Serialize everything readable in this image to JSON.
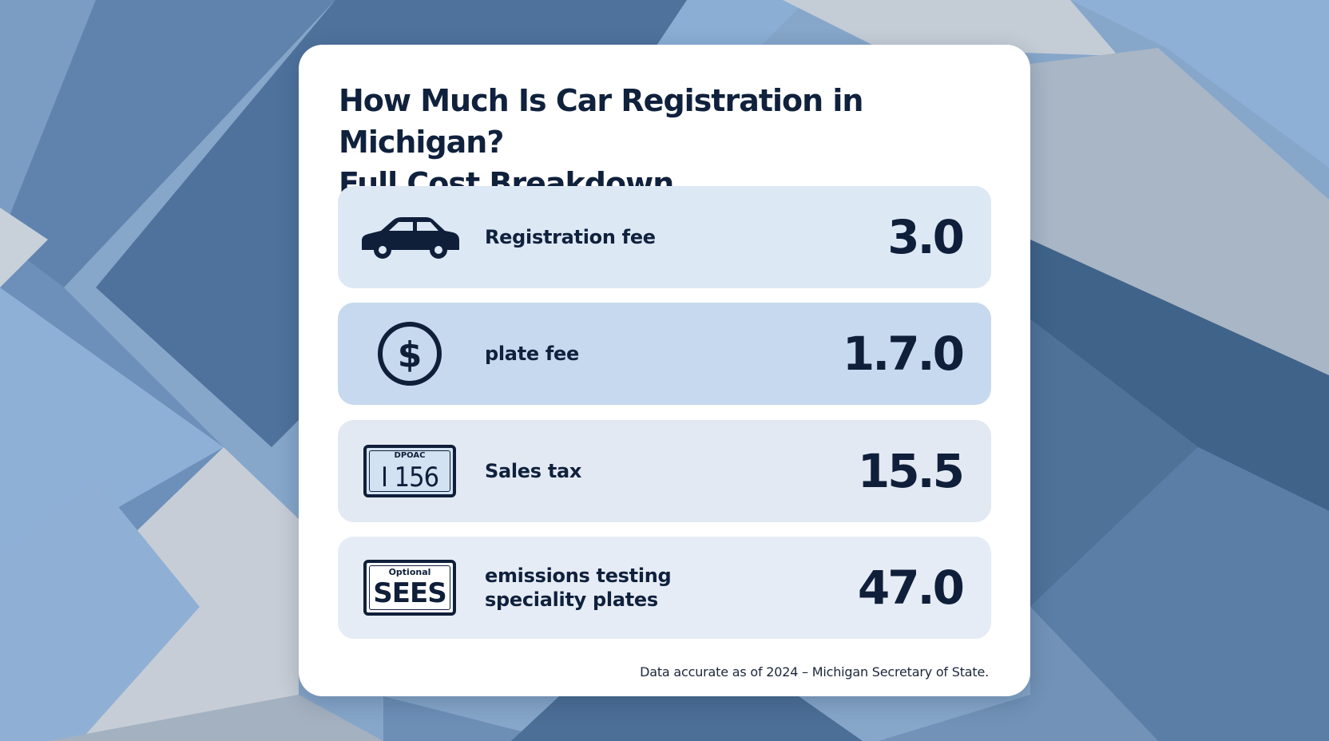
{
  "card": {
    "title_line1": "How Much Is Car Registration in Michigan?",
    "title_line2": "Full Cost Breakdown",
    "footnote": "Data accurate as of 2024 – Michigan Secretary of State."
  },
  "rows": [
    {
      "label": "Registration fee",
      "value": "3.0",
      "icon": "car-icon",
      "bg": "#dde8f5"
    },
    {
      "label": "plate fee",
      "value": "1.7.0",
      "icon": "dollar-icon",
      "bg": "#c6d9ee"
    },
    {
      "label": "Sales tax",
      "value": "15.5",
      "icon": "license-plate-icon",
      "plate_small": "DPOAC",
      "plate_big": "I 156",
      "bg": "#e3e9f2"
    },
    {
      "label_line1": "emissions testing",
      "label_line2": "speciality plates",
      "value": "47.0",
      "icon": "specialty-plate-icon",
      "plate_small": "Optional",
      "plate_big": "SEES",
      "bg": "#e6ecf5"
    }
  ],
  "colors": {
    "ink": "#10213d",
    "accent_blue": "#7e9cc0"
  }
}
